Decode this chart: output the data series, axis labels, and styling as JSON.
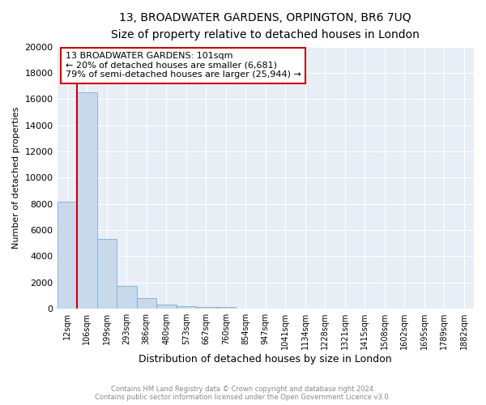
{
  "title": "13, BROADWATER GARDENS, ORPINGTON, BR6 7UQ",
  "subtitle": "Size of property relative to detached houses in London",
  "xlabel": "Distribution of detached houses by size in London",
  "ylabel": "Number of detached properties",
  "footer_line1": "Contains HM Land Registry data © Crown copyright and database right 2024.",
  "footer_line2": "Contains public sector information licensed under the Open Government Licence v3.0.",
  "categories": [
    "12sqm",
    "106sqm",
    "199sqm",
    "293sqm",
    "386sqm",
    "480sqm",
    "573sqm",
    "667sqm",
    "760sqm",
    "854sqm",
    "947sqm",
    "1041sqm",
    "1134sqm",
    "1228sqm",
    "1321sqm",
    "1415sqm",
    "1508sqm",
    "1602sqm",
    "1695sqm",
    "1789sqm",
    "1882sqm"
  ],
  "values": [
    8200,
    16500,
    5300,
    1750,
    800,
    300,
    200,
    150,
    130,
    30,
    0,
    0,
    0,
    0,
    0,
    0,
    0,
    0,
    0,
    0,
    0
  ],
  "bar_color": "#c9d9ec",
  "bar_edge_color": "#7aaed0",
  "marker_color": "#cc0000",
  "ylim": [
    0,
    20000
  ],
  "yticks": [
    0,
    2000,
    4000,
    6000,
    8000,
    10000,
    12000,
    14000,
    16000,
    18000,
    20000
  ],
  "annotation_title": "13 BROADWATER GARDENS: 101sqm",
  "annotation_line1": "← 20% of detached houses are smaller (6,681)",
  "annotation_line2": "79% of semi-detached houses are larger (25,944) →",
  "annotation_box_color": "#cc0000",
  "background_color": "#e8eef5"
}
